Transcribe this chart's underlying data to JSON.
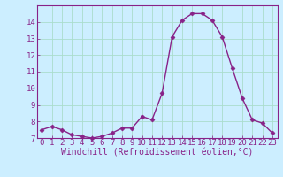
{
  "hours": [
    0,
    1,
    2,
    3,
    4,
    5,
    6,
    7,
    8,
    9,
    10,
    11,
    12,
    13,
    14,
    15,
    16,
    17,
    18,
    19,
    20,
    21,
    22,
    23
  ],
  "values": [
    7.5,
    7.7,
    7.5,
    7.2,
    7.1,
    7.0,
    7.1,
    7.3,
    7.6,
    7.6,
    8.3,
    8.1,
    9.7,
    13.1,
    14.1,
    14.5,
    14.5,
    14.1,
    13.1,
    11.2,
    9.4,
    8.1,
    7.9,
    7.3
  ],
  "line_color": "#882288",
  "marker": "D",
  "marker_size": 2.5,
  "linewidth": 1.0,
  "bg_color": "#cceeff",
  "grid_color": "#aaddcc",
  "xlabel": "Windchill (Refroidissement éolien,°C)",
  "ylim": [
    7,
    15
  ],
  "xlim_min": -0.5,
  "xlim_max": 23.5,
  "yticks": [
    7,
    8,
    9,
    10,
    11,
    12,
    13,
    14
  ],
  "tick_color": "#882288",
  "tick_fontsize": 6.5,
  "xlabel_fontsize": 7.0,
  "axis_color": "#882288",
  "spine_color": "#882288"
}
